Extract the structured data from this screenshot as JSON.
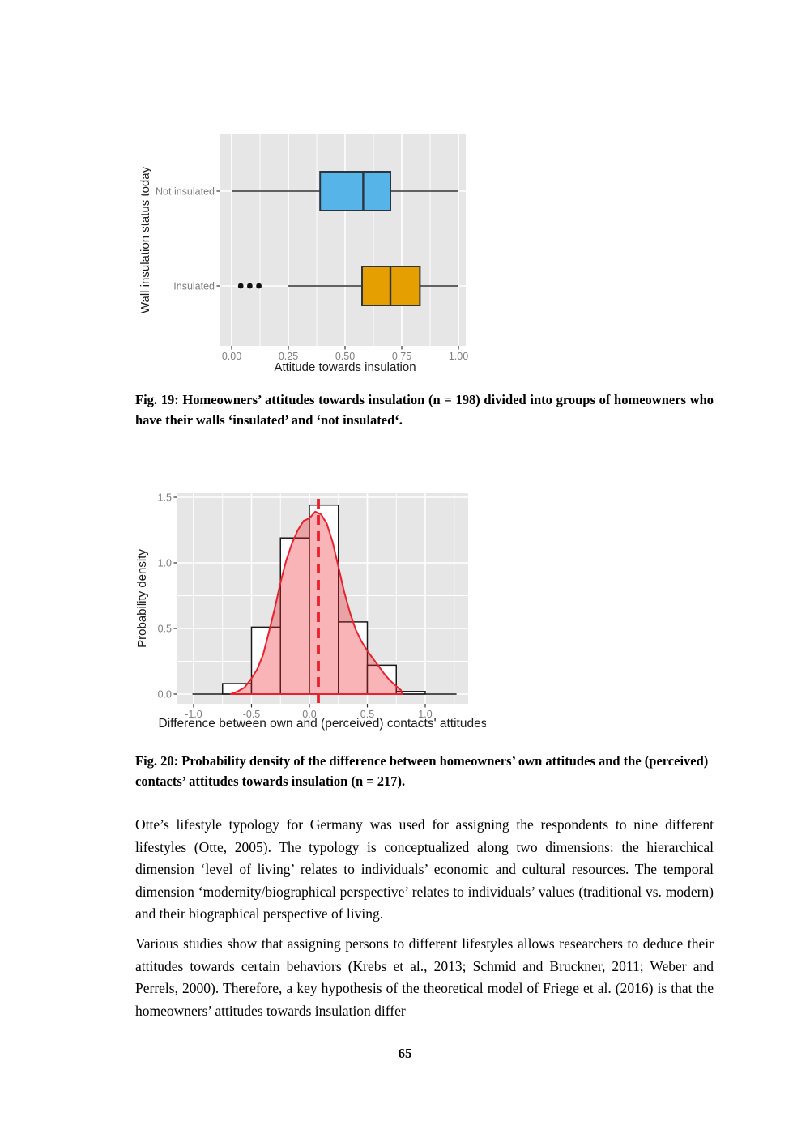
{
  "page": {
    "number": "65"
  },
  "figures": {
    "fig19": {
      "caption": "Fig. 19: Homeowners’ attitudes towards insulation (n = 198) divided into groups of homeowners who have their walls ‘insulated’ and ‘not insulated‘."
    },
    "fig20": {
      "caption": "Fig. 20: Probability density of the difference between homeowners’ own attitudes and the (perceived) contacts’ attitudes towards insulation (n = 217)."
    }
  },
  "text": {
    "paragraph1": "Otte’s lifestyle typology for Germany was used for assigning the respondents to nine different lifestyles (Otte, 2005). The typology is conceptualized along two dimensions: the hierarchical dimension ‘level of living’ relates to individuals’ economic and cultural resources. The temporal dimension ‘modernity/biographical perspective’ relates to individuals’ values (traditional vs. modern) and their biographical perspective of living.",
    "paragraph2": "Various studies show that assigning persons to different lifestyles allows researchers to deduce their attitudes towards certain behaviors (Krebs et al., 2013; Schmid and Bruckner, 2011; Weber and Perrels, 2000). Therefore, a key hypothesis of the theoretical model of Friege et al. (2016) is that the homeowners’ attitudes towards insulation differ"
  },
  "chart_data": [
    {
      "type": "boxplot",
      "orientation": "horizontal",
      "xlabel": "Attitude towards insulation",
      "ylabel": "Wall insulation status today",
      "xticks": [
        0,
        0.25,
        0.5,
        0.75,
        1.0
      ],
      "xtick_labels": [
        "0.00",
        "0.25",
        "0.50",
        "0.75",
        "1.00"
      ],
      "xminor": [
        0.125,
        0.375,
        0.625,
        0.875
      ],
      "xlim": [
        -0.05,
        1.03
      ],
      "grid": true,
      "panel_bg": "#e6e6e6",
      "grid_color": "#ffffff",
      "groups": [
        {
          "label": "Not insulated",
          "fill": "#56b4e9",
          "whisker_low": 0.0,
          "q1": 0.39,
          "median": 0.58,
          "q3": 0.7,
          "whisker_high": 1.0,
          "outliers": []
        },
        {
          "label": "Insulated",
          "fill": "#e69f00",
          "whisker_low": 0.25,
          "q1": 0.575,
          "median": 0.7,
          "q3": 0.83,
          "whisker_high": 1.0,
          "outliers": [
            0.04,
            0.08,
            0.12
          ]
        }
      ]
    },
    {
      "type": "histogram_density",
      "xlabel": "Difference between own and (perceived) contacts' attitudes",
      "ylabel": "Probability density",
      "xticks": [
        -1.0,
        -0.5,
        0.0,
        0.5,
        1.0
      ],
      "xtick_labels": [
        "-1.0",
        "-0.5",
        "0.0",
        "0.5",
        "1.0"
      ],
      "xminor": [
        -0.75,
        -0.25,
        0.25,
        0.75,
        1.25
      ],
      "yticks": [
        0,
        0.5,
        1.0,
        1.5
      ],
      "ytick_labels": [
        "0.0",
        "0.5",
        "1.0",
        "1.5"
      ],
      "yminor": [
        0.25,
        0.75,
        1.25
      ],
      "xlim": [
        -1.14,
        1.37
      ],
      "ylim": [
        -0.07,
        1.53
      ],
      "bin_width": 0.25,
      "bins": [
        {
          "x0": -1.0,
          "height": 0
        },
        {
          "x0": -0.75,
          "height": 0.08
        },
        {
          "x0": -0.5,
          "height": 0.51
        },
        {
          "x0": -0.25,
          "height": 1.19
        },
        {
          "x0": 0.0,
          "height": 1.44
        },
        {
          "x0": 0.25,
          "height": 0.55
        },
        {
          "x0": 0.5,
          "height": 0.22
        },
        {
          "x0": 0.75,
          "height": 0.02
        },
        {
          "x0": 1.0,
          "height": 0
        }
      ],
      "baseline_extent": [
        -1.01,
        1.27
      ],
      "mean_line_x": 0.077,
      "density": [
        [
          -0.68,
          0
        ],
        [
          -0.62,
          0.02
        ],
        [
          -0.56,
          0.05
        ],
        [
          -0.5,
          0.12
        ],
        [
          -0.45,
          0.19
        ],
        [
          -0.4,
          0.3
        ],
        [
          -0.35,
          0.47
        ],
        [
          -0.3,
          0.65
        ],
        [
          -0.25,
          0.85
        ],
        [
          -0.2,
          1.02
        ],
        [
          -0.15,
          1.15
        ],
        [
          -0.1,
          1.25
        ],
        [
          -0.05,
          1.32
        ],
        [
          0.0,
          1.34
        ],
        [
          0.05,
          1.39
        ],
        [
          0.1,
          1.37
        ],
        [
          0.15,
          1.3
        ],
        [
          0.2,
          1.16
        ],
        [
          0.25,
          0.97
        ],
        [
          0.3,
          0.78
        ],
        [
          0.35,
          0.62
        ],
        [
          0.4,
          0.49
        ],
        [
          0.45,
          0.4
        ],
        [
          0.5,
          0.33
        ],
        [
          0.55,
          0.27
        ],
        [
          0.6,
          0.21
        ],
        [
          0.65,
          0.15
        ],
        [
          0.7,
          0.1
        ],
        [
          0.75,
          0.06
        ],
        [
          0.79,
          0.03
        ],
        [
          0.8,
          0
        ]
      ],
      "grid": true,
      "panel_bg": "#e6e6e6",
      "grid_color": "#ffffff",
      "colors": {
        "bar_fill": "#ffffff",
        "bar_stroke": "#1a1a1a",
        "density_stroke": "#e8212e",
        "density_fill": "rgba(237,28,36,0.33)",
        "mean_line": "#e8212e"
      }
    }
  ]
}
